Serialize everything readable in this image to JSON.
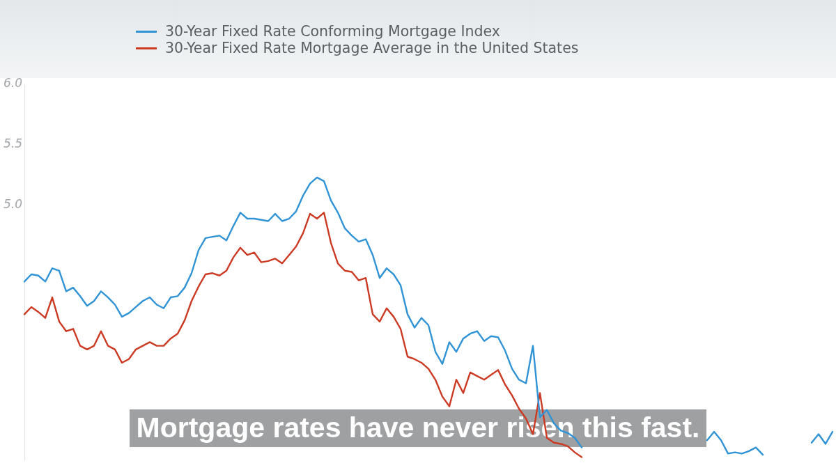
{
  "chart_data": {
    "type": "line",
    "categories": [
      null,
      null,
      null,
      null,
      null,
      null,
      null,
      null,
      null,
      null,
      null,
      null,
      null,
      null,
      null,
      null,
      null,
      null,
      null,
      null,
      null,
      null,
      null,
      null,
      null,
      null,
      null,
      null,
      null,
      null,
      null,
      null,
      null,
      null,
      null,
      null,
      null,
      null,
      null,
      null,
      null,
      null,
      null,
      null,
      null,
      null,
      null,
      null,
      null,
      null,
      null,
      null,
      null,
      null,
      null,
      null,
      null,
      null,
      null,
      null,
      null,
      null,
      null,
      null,
      null,
      null,
      null,
      null,
      null,
      null,
      null,
      null,
      null,
      null,
      null,
      null,
      null,
      null,
      null,
      null,
      null,
      null,
      null,
      null,
      null,
      null,
      null,
      null,
      null,
      null,
      null,
      null,
      null,
      null,
      null,
      null,
      null,
      null,
      null,
      null,
      null,
      null,
      null,
      null,
      null,
      null,
      null,
      null,
      null,
      null,
      null,
      null,
      null,
      null,
      null,
      null,
      null
    ],
    "series": [
      {
        "name": "30-Year Fixed Rate Conforming Mortgage Index",
        "color": "#2f93d6",
        "values": [
          4.37,
          4.43,
          4.42,
          4.37,
          4.48,
          4.46,
          4.29,
          4.32,
          4.25,
          4.17,
          4.21,
          4.29,
          4.24,
          4.18,
          4.08,
          4.11,
          4.16,
          4.21,
          4.24,
          4.18,
          4.15,
          4.24,
          4.25,
          4.32,
          4.44,
          4.63,
          4.73,
          4.74,
          4.75,
          4.71,
          4.83,
          4.94,
          4.89,
          4.89,
          4.88,
          4.87,
          4.93,
          4.87,
          4.89,
          4.95,
          5.08,
          5.18,
          5.23,
          5.2,
          5.04,
          4.94,
          4.81,
          4.75,
          4.7,
          4.72,
          4.59,
          4.4,
          4.48,
          4.43,
          4.34,
          4.1,
          3.99,
          4.07,
          4.01,
          3.79,
          3.69,
          3.87,
          3.79,
          3.9,
          3.94,
          3.96,
          3.88,
          3.92,
          3.91,
          3.8,
          3.65,
          3.56,
          3.53,
          3.84,
          3.25,
          3.31,
          3.2,
          3.14,
          3.12,
          3.08,
          3.0,
          null,
          null,
          null,
          null,
          null,
          null,
          null,
          null,
          null,
          null,
          null,
          null,
          null,
          null,
          null,
          null,
          null,
          null,
          null,
          null,
          null,
          null,
          null,
          null,
          null,
          null,
          null,
          null,
          null,
          null,
          null,
          null,
          null,
          null,
          null,
          null
        ]
      },
      {
        "name": "30-Year Fixed Rate Mortgage Average in the United States",
        "color": "#cc3a24",
        "values": [
          4.1,
          4.16,
          4.12,
          4.07,
          4.24,
          4.04,
          3.96,
          3.98,
          3.84,
          3.81,
          3.84,
          3.96,
          3.84,
          3.81,
          3.7,
          3.73,
          3.81,
          3.84,
          3.87,
          3.84,
          3.84,
          3.9,
          3.94,
          4.05,
          4.21,
          4.33,
          4.43,
          4.44,
          4.42,
          4.46,
          4.57,
          4.65,
          4.59,
          4.61,
          4.53,
          4.54,
          4.56,
          4.52,
          4.59,
          4.66,
          4.77,
          4.93,
          4.89,
          4.94,
          4.69,
          4.52,
          4.46,
          4.45,
          4.38,
          4.4,
          4.1,
          4.04,
          4.15,
          4.08,
          3.98,
          3.75,
          3.73,
          3.7,
          3.65,
          3.56,
          3.42,
          3.34,
          3.56,
          3.45,
          3.62,
          3.59,
          3.56,
          3.6,
          3.64,
          3.52,
          3.43,
          3.32,
          3.24,
          3.11,
          3.45,
          3.08,
          3.04,
          3.03,
          3.01,
          2.96,
          2.92,
          null,
          null,
          null,
          null,
          null,
          null,
          null,
          null,
          null,
          null,
          null,
          null,
          null,
          null,
          null,
          null,
          null,
          null,
          null,
          null,
          null,
          null,
          null,
          null,
          null,
          null,
          null,
          null,
          null,
          null,
          null,
          null,
          null,
          null,
          null,
          null
        ]
      },
      {
        "color": "#2f93d6",
        "values": [
          null,
          null,
          null,
          null,
          null,
          null,
          null,
          null,
          null,
          null,
          null,
          null,
          null,
          null,
          null,
          null,
          null,
          null,
          null,
          null,
          null,
          null,
          null,
          null,
          null,
          null,
          null,
          null,
          null,
          null,
          null,
          null,
          null,
          null,
          null,
          null,
          null,
          null,
          null,
          null,
          null,
          null,
          null,
          null,
          null,
          null,
          null,
          null,
          null,
          null,
          null,
          null,
          null,
          null,
          null,
          null,
          null,
          null,
          null,
          null,
          null,
          null,
          null,
          null,
          null,
          null,
          null,
          null,
          null,
          null,
          null,
          null,
          null,
          null,
          null,
          null,
          null,
          null,
          null,
          null,
          null,
          null,
          null,
          null,
          null,
          null,
          null,
          null,
          null,
          null,
          null,
          null,
          null,
          null,
          null,
          null,
          null,
          null,
          3.06,
          3.13,
          3.06,
          2.95,
          2.96,
          2.95,
          2.97,
          3.0,
          2.94,
          null,
          null,
          null,
          null,
          null,
          null,
          null,
          null,
          null,
          null
        ]
      },
      {
        "color": "#2f93d6",
        "values": [
          null,
          null,
          null,
          null,
          null,
          null,
          null,
          null,
          null,
          null,
          null,
          null,
          null,
          null,
          null,
          null,
          null,
          null,
          null,
          null,
          null,
          null,
          null,
          null,
          null,
          null,
          null,
          null,
          null,
          null,
          null,
          null,
          null,
          null,
          null,
          null,
          null,
          null,
          null,
          null,
          null,
          null,
          null,
          null,
          null,
          null,
          null,
          null,
          null,
          null,
          null,
          null,
          null,
          null,
          null,
          null,
          null,
          null,
          null,
          null,
          null,
          null,
          null,
          null,
          null,
          null,
          null,
          null,
          null,
          null,
          null,
          null,
          null,
          null,
          null,
          null,
          null,
          null,
          null,
          null,
          null,
          null,
          null,
          null,
          null,
          null,
          null,
          null,
          null,
          null,
          null,
          null,
          null,
          null,
          null,
          null,
          null,
          null,
          null,
          null,
          null,
          null,
          null,
          null,
          null,
          null,
          null,
          null,
          null,
          null,
          null,
          null,
          null,
          3.04,
          3.11,
          3.03,
          3.13
        ]
      }
    ],
    "ylim": [
      2.89,
      6.0
    ],
    "yticks": [
      {
        "value": 6.0,
        "label": "6.0"
      },
      {
        "value": 5.5,
        "label": "5.5"
      },
      {
        "value": 5.0,
        "label": "5.0"
      }
    ],
    "tick_labels": "y",
    "grid": false,
    "legend": "top left",
    "marker": "none",
    "annotations": [
      "Mortgage rates have never risen this fast."
    ]
  }
}
